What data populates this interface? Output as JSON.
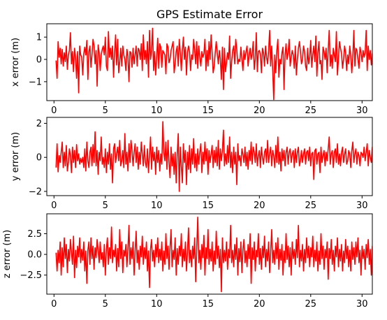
{
  "chart_data": [
    {
      "type": "line",
      "title": "GPS Estimate Error",
      "ylabel": "x error (m)",
      "xlabel": "",
      "xlim": [
        -0.7,
        31.0
      ],
      "ylim": [
        -1.85,
        1.6
      ],
      "xticks": [
        0,
        5,
        10,
        15,
        20,
        25,
        30
      ],
      "yticks": [
        -1,
        0,
        1
      ],
      "ytick_labels": [
        "−1",
        "0",
        "1"
      ],
      "x_start": 0.2,
      "x_end": 29.9,
      "x_step": 0.1,
      "color": "#ff0000",
      "series": [
        {
          "values": [
            -0.05,
            -0.85,
            0.8,
            0.1,
            0.5,
            -0.2,
            0.45,
            -0.3,
            0.3,
            -0.1,
            0.6,
            -0.45,
            0.2,
            0.4,
            1.2,
            -0.2,
            0.35,
            -0.55,
            0.5,
            0.1,
            -0.85,
            0.35,
            -1.5,
            0.6,
            0.2,
            0.1,
            -0.7,
            0.25,
            0.55,
            0.2,
            0.85,
            -0.9,
            0.35,
            0.6,
            -0.35,
            0.2,
            0.9,
            0.6,
            -0.2,
            0.4,
            -1.2,
            0.65,
            0.3,
            -0.5,
            0.2,
            0.45,
            0.6,
            0.2,
            1.0,
            -0.3,
            -0.5,
            1.25,
            0.1,
            0.5,
            0.0,
            0.6,
            -0.8,
            0.3,
            1.1,
            -0.25,
            0.9,
            -0.6,
            -0.1,
            0.5,
            -0.3,
            0.6,
            0.2,
            0.0,
            -0.5,
            0.45,
            0.15,
            -1.0,
            0.35,
            0.3,
            -0.35,
            0.5,
            -0.2,
            0.2,
            0.6,
            -0.3,
            0.5,
            0.4,
            0.0,
            0.7,
            -0.5,
            1.1,
            0.0,
            0.4,
            -0.2,
            0.8,
            -0.8,
            1.3,
            0.0,
            0.4,
            1.4,
            -0.5,
            0.35,
            -0.7,
            0.1,
            0.95,
            -0.4,
            0.7,
            0.55,
            -0.35,
            0.4,
            0.3,
            0.2,
            -0.65,
            0.7,
            0.55,
            -0.15,
            0.0,
            0.4,
            0.6,
            0.8,
            -0.6,
            -0.2,
            0.35,
            0.6,
            -0.3,
            0.9,
            0.3,
            -0.5,
            0.4,
            1.0,
            0.0,
            0.55,
            -0.7,
            0.3,
            0.6,
            0.35,
            -0.5,
            0.2,
            0.0,
            0.9,
            0.4,
            -0.2,
            0.8,
            -0.4,
            0.6,
            0.1,
            -0.3,
            0.35,
            0.1,
            0.25,
            0.9,
            -0.5,
            0.4,
            -0.3,
            0.8,
            0.0,
            1.1,
            0.3,
            -0.6,
            -0.3,
            0.3,
            0.8,
            0.3,
            -0.2,
            0.4,
            0.0,
            -0.9,
            0.55,
            -1.35,
            0.5,
            -0.55,
            -0.15,
            0.3,
            0.0,
            1.05,
            -0.85,
            -0.1,
            0.4,
            0.6,
            -0.2,
            0.9,
            0.45,
            -0.2,
            0.0,
            -0.1,
            0.55,
            0.0,
            -0.5,
            0.4,
            0.0,
            0.35,
            0.6,
            -0.3,
            0.2,
            0.5,
            0.0,
            0.25,
            0.8,
            -0.45,
            0.0,
            1.2,
            -0.55,
            0.35,
            0.4,
            0.2,
            -0.6,
            0.5,
            0.3,
            -0.3,
            0.6,
            0.1,
            -0.2,
            0.4,
            1.3,
            -0.3,
            0.6,
            -0.5,
            -1.8,
            0.2,
            -0.6,
            0.4,
            0.9,
            -0.8,
            0.0,
            -0.2,
            0.3,
            0.55,
            -1.35,
            0.2,
            0.7,
            0.0,
            0.3,
            0.9,
            -0.3,
            0.1,
            0.4,
            0.2,
            -0.4,
            0.6,
            -0.7,
            0.0,
            0.5,
            0.8,
            0.35,
            -0.2,
            0.0,
            0.6,
            0.35,
            -0.3,
            -0.5,
            0.5,
            -0.2,
            0.1,
            0.85,
            -0.35,
            0.2,
            0.6,
            -0.1,
            1.05,
            -0.75,
            0.3,
            0.8,
            -0.2,
            -0.05,
            -0.9,
            0.55,
            0.35,
            0.0,
            0.5,
            -0.6,
            0.4,
            1.3,
            -0.3,
            0.2,
            -0.4,
            0.5,
            0.2,
            -0.1,
            1.25,
            -0.7,
            0.0,
            0.8,
            0.5,
            0.25,
            -0.4,
            0.0,
            0.6,
            0.3,
            -0.5,
            0.2,
            -0.2,
            0.6,
            0.15,
            -0.6,
            0.1,
            1.3,
            -0.3,
            0.5,
            0.4,
            0.0,
            -0.4,
            0.55,
            0.3,
            -0.1,
            0.4,
            0.1,
            0.3,
            1.3,
            -0.5,
            0.6,
            0.0,
            0.4,
            -0.25,
            0.25,
            0.5,
            0.0,
            -0.1
          ]
        }
      ]
    },
    {
      "type": "line",
      "title": "",
      "ylabel": "y error (m)",
      "xlabel": "",
      "xlim": [
        -0.7,
        31.0
      ],
      "ylim": [
        -2.25,
        2.35
      ],
      "xticks": [
        0,
        5,
        10,
        15,
        20,
        25,
        30
      ],
      "yticks": [
        -2,
        0,
        2
      ],
      "ytick_labels": [
        "−2",
        "0",
        "2"
      ],
      "x_start": 0.2,
      "x_end": 29.9,
      "x_step": 0.1,
      "color": "#ff0000",
      "series": [
        {
          "values": [
            -0.6,
            0.8,
            -0.85,
            0.1,
            -0.3,
            0.3,
            0.9,
            -0.6,
            0.3,
            -0.5,
            0.7,
            -0.8,
            -0.3,
            0.5,
            0.1,
            -0.9,
            0.6,
            -0.3,
            0.4,
            -0.6,
            0.75,
            -0.2,
            0.2,
            -0.4,
            -0.05,
            -0.3,
            0.0,
            -0.6,
            0.5,
            -0.8,
            0.9,
            -0.2,
            -0.6,
            0.3,
            0.6,
            -0.5,
            0.75,
            -0.3,
            1.5,
            -0.5,
            0.4,
            -1.0,
            0.3,
            -0.2,
            1.2,
            -0.4,
            0.0,
            -0.6,
            0.5,
            -0.9,
            0.3,
            -0.4,
            0.8,
            -0.7,
            0.2,
            -1.5,
            0.5,
            0.8,
            -0.3,
            0.2,
            0.6,
            -0.2,
            1.0,
            -0.5,
            -0.2,
            0.4,
            -0.6,
            1.4,
            -0.4,
            0.3,
            -0.8,
            0.8,
            -0.3,
            1.0,
            0.4,
            -0.5,
            0.3,
            0.8,
            -0.3,
            0.6,
            -0.7,
            0.3,
            -0.4,
            0.9,
            0.2,
            -0.5,
            0.7,
            -0.3,
            -0.6,
            0.5,
            -0.9,
            0.1,
            1.2,
            -0.7,
            0.6,
            -0.2,
            0.3,
            -1.0,
            0.6,
            -0.3,
            0.4,
            -0.8,
            0.2,
            -0.4,
            2.1,
            0.3,
            -0.2,
            0.9,
            -0.7,
            1.0,
            -0.3,
            -1.2,
            0.6,
            -0.5,
            0.2,
            -1.0,
            0.3,
            -1.5,
            0.2,
            1.4,
            -2.0,
            0.6,
            -0.5,
            -1.5,
            0.8,
            -0.3,
            0.4,
            -1.6,
            0.3,
            -0.7,
            0.7,
            -0.9,
            0.5,
            -0.4,
            1.1,
            -0.6,
            0.2,
            -0.8,
            0.5,
            -0.4,
            0.3,
            0.8,
            -0.9,
            0.3,
            -0.4,
            0.9,
            -0.2,
            0.5,
            -1.0,
            0.4,
            -0.3,
            0.2,
            0.7,
            -0.6,
            0.4,
            -0.3,
            0.6,
            -0.5,
            1.0,
            -0.7,
            0.5,
            -0.2,
            0.4,
            1.6,
            -0.5,
            0.2,
            -0.4,
            0.7,
            -0.3,
            1.2,
            -0.6,
            0.3,
            -0.9,
            0.6,
            -0.4,
            0.3,
            -1.6,
            0.8,
            -0.2,
            0.1,
            -0.5,
            0.5,
            0.2,
            -0.3,
            0.6,
            -0.5,
            0.3,
            -0.7,
            0.4,
            -0.2,
            0.9,
            -0.4,
            0.6,
            0.3,
            -0.3,
            0.8,
            -0.5,
            0.1,
            0.4,
            -0.6,
            0.6,
            0.0,
            -0.4,
            0.3,
            0.5,
            -0.3,
            1.0,
            -0.3,
            0.2,
            0.6,
            -0.5,
            0.4,
            0.1,
            -0.6,
            0.7,
            -0.3,
            1.2,
            -0.4,
            0.3,
            -0.8,
            0.5,
            -0.2,
            0.4,
            -0.5,
            0.3,
            0.6,
            -0.4,
            0.3,
            0.5,
            -0.3,
            0.2,
            0.4,
            -0.6,
            0.5,
            -0.3,
            0.3,
            0.6,
            -0.5,
            -0.2,
            0.4,
            -0.3,
            0.2,
            0.5,
            -0.4,
            0.3,
            0.4,
            -0.2,
            0.6,
            -0.5,
            0.2,
            0.3,
            -1.3,
            0.4,
            0.5,
            -0.4,
            0.2,
            0.3,
            -0.9,
            0.6,
            -0.3,
            0.1,
            0.4,
            -0.5,
            0.3,
            -0.2,
            0.5,
            1.2,
            -0.4,
            0.2,
            0.4,
            -0.6,
            0.3,
            0.5,
            -0.3,
            0.8,
            -0.4,
            0.2,
            -0.5,
            0.3,
            0.6,
            -0.3,
            0.2,
            0.5,
            -0.4,
            -0.2,
            0.4,
            0.2,
            -0.6,
            0.4,
            0.9,
            -0.3,
            0.2,
            0.5,
            -0.4,
            0.3,
            0.1,
            -0.5,
            0.3,
            0.2,
            0.0,
            0.6,
            -0.2,
            0.3,
            0.8,
            -0.5,
            0.4,
            0.0,
            -0.3,
            0.6,
            0.3,
            0.8
          ]
        }
      ]
    },
    {
      "type": "line",
      "title": "",
      "ylabel": "z error (m)",
      "xlabel": "",
      "xlim": [
        -0.7,
        31.0
      ],
      "ylim": [
        -4.8,
        4.9
      ],
      "xticks": [
        0,
        5,
        10,
        15,
        20,
        25,
        30
      ],
      "yticks": [
        -2.5,
        0.0,
        2.5
      ],
      "ytick_labels": [
        "−2.5",
        "0.0",
        "2.5"
      ],
      "x_start": 0.2,
      "x_end": 29.9,
      "x_step": 0.1,
      "color": "#ff0000",
      "series": [
        {
          "values": [
            0.2,
            -2.0,
            0.5,
            -1.0,
            1.5,
            -2.5,
            0.8,
            -1.5,
            2.0,
            -0.5,
            1.2,
            -2.2,
            0.6,
            -0.8,
            1.8,
            0.3,
            -1.2,
            2.2,
            -2.8,
            0.5,
            -1.6,
            1.0,
            -0.3,
            2.0,
            -1.0,
            0.6,
            -0.7,
            1.5,
            -2.0,
            0.4,
            -3.5,
            0.5,
            1.5,
            -1.2,
            2.0,
            -0.5,
            1.0,
            -1.8,
            0.8,
            -0.4,
            1.8,
            0.5,
            -1.0,
            1.5,
            -0.6,
            0.2,
            -1.5,
            1.2,
            -2.5,
            0.6,
            2.0,
            -1.2,
            0.8,
            -0.5,
            3.3,
            -1.0,
            0.5,
            -0.3,
            1.2,
            -2.0,
            0.7,
            -1.5,
            3.0,
            -0.5,
            1.5,
            -2.2,
            0.5,
            -0.2,
            1.2,
            -1.5,
            0.6,
            3.5,
            -1.2,
            0.8,
            -0.5,
            1.5,
            -2.5,
            0.3,
            2.8,
            -1.0,
            0.5,
            -1.8,
            1.0,
            -0.3,
            2.2,
            -1.2,
            0.8,
            -0.5,
            1.5,
            -2.0,
            0.4,
            -4.0,
            0.6,
            1.8,
            -0.8,
            0.5,
            -1.5,
            1.2,
            -0.3,
            2.0,
            -1.0,
            0.6,
            -0.7,
            1.5,
            -2.0,
            0.4,
            -1.2,
            2.5,
            -0.5,
            1.0,
            -1.8,
            0.8,
            3.0,
            -1.5,
            0.5,
            -0.6,
            2.0,
            -2.5,
            0.7,
            -1.2,
            1.0,
            -0.2,
            2.5,
            -1.5,
            0.6,
            -0.8,
            1.5,
            -2.0,
            0.3,
            3.2,
            -1.0,
            0.5,
            -1.5,
            1.0,
            -0.5,
            2.0,
            -3.3,
            0.7,
            4.5,
            -1.0,
            0.5,
            -1.8,
            1.2,
            -0.4,
            2.3,
            -2.5,
            0.8,
            -0.5,
            3.0,
            -1.2,
            0.6,
            -0.8,
            1.5,
            -2.0,
            0.4,
            -1.2,
            2.8,
            -0.5,
            1.0,
            -1.6,
            0.6,
            -4.5,
            2.0,
            -1.0,
            0.5,
            -0.8,
            1.5,
            -1.8,
            0.6,
            -0.4,
            3.5,
            -1.0,
            0.5,
            -1.5,
            1.2,
            -0.6,
            2.0,
            -2.5,
            0.7,
            -0.9,
            1.5,
            -2.2,
            0.6,
            1.8,
            -1.0,
            0.4,
            -1.5,
            1.2,
            -0.5,
            2.5,
            -3.5,
            0.8,
            -0.6,
            1.5,
            -2.0,
            0.5,
            -0.3,
            2.5,
            -1.2,
            0.7,
            -1.8,
            1.0,
            -0.4,
            2.2,
            -1.5,
            0.6,
            -0.8,
            1.5,
            -2.2,
            0.3,
            3.0,
            -1.0,
            0.5,
            -1.2,
            1.4,
            -0.5,
            2.0,
            -1.8,
            0.6,
            -0.7,
            1.2,
            -2.5,
            0.4,
            -1.0,
            2.5,
            -0.6,
            1.0,
            -1.5,
            0.8,
            -2.5,
            1.5,
            -0.5,
            0.6,
            -1.2,
            1.8,
            -0.4,
            3.5,
            -1.5,
            0.5,
            -0.8,
            1.2,
            -2.0,
            0.6,
            -1.0,
            2.0,
            -0.4,
            1.0,
            -1.5,
            0.8,
            -0.3,
            2.2,
            -1.5,
            0.5,
            -0.8,
            1.5,
            -2.0,
            0.4,
            -1.2,
            2.5,
            -0.5,
            1.0,
            -1.8,
            0.6,
            -0.4,
            1.5,
            -3.0,
            0.7,
            -0.5,
            1.8,
            -1.2,
            0.5,
            -2.0,
            1.0,
            -0.3,
            2.0,
            -1.5,
            0.6,
            -0.8,
            1.2,
            -2.0,
            0.4,
            -1.0,
            1.8,
            -0.5,
            1.0,
            -1.5,
            0.5,
            -2.0,
            1.5,
            -0.6,
            0.8,
            -1.2,
            1.5,
            -0.3,
            2.0,
            -1.0,
            0.5,
            -2.5,
            1.0,
            -0.5,
            0.6,
            -1.8,
            1.2,
            -0.4,
            1.8,
            -1.2,
            0.6,
            -2.5,
            1.0,
            -0.4,
            2.0,
            -0.5
          ]
        }
      ]
    }
  ]
}
